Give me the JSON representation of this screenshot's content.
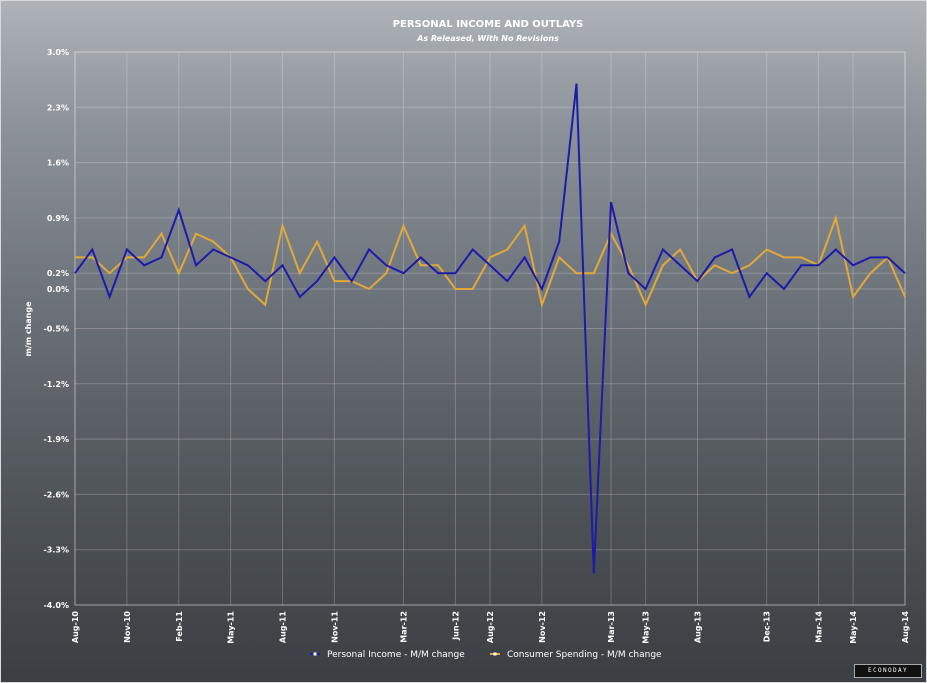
{
  "chart_data": {
    "type": "line",
    "title": "PERSONAL INCOME AND OUTLAYS",
    "subtitle": "As Released, With No Revisions",
    "ylabel": "m/m change",
    "ylim": [
      -4.0,
      3.0
    ],
    "yticks": [
      "3.0%",
      "2.3%",
      "1.6%",
      "0.9%",
      "0.2%",
      "0.0%",
      "-0.5%",
      "-1.2%",
      "-1.9%",
      "-2.6%",
      "-3.3%",
      "-4.0%"
    ],
    "ytick_values": [
      3.0,
      2.3,
      1.6,
      0.9,
      0.2,
      0.0,
      -0.5,
      -1.2,
      -1.9,
      -2.6,
      -3.3,
      -4.0
    ],
    "x": [
      "Aug-10",
      "Sep-10",
      "Oct-10",
      "Nov-10",
      "Dec-10",
      "Jan-11",
      "Feb-11",
      "Mar-11",
      "Apr-11",
      "May-11",
      "Jun-11",
      "Jul-11",
      "Aug-11",
      "Sep-11",
      "Oct-11",
      "Nov-11",
      "Dec-11",
      "Jan-12",
      "Feb-12",
      "Mar-12",
      "Apr-12",
      "May-12",
      "Jun-12",
      "Jul-12",
      "Aug-12",
      "Sep-12",
      "Oct-12",
      "Nov-12",
      "Dec-12",
      "Jan-13",
      "Feb-13",
      "Mar-13",
      "Apr-13",
      "May-13",
      "Jun-13",
      "Jul-13",
      "Aug-13",
      "Sep-13",
      "Oct-13",
      "Nov-13",
      "Dec-13",
      "Jan-14",
      "Feb-14",
      "Mar-14",
      "Apr-14",
      "May-14",
      "Jun-14",
      "Jul-14",
      "Aug-14"
    ],
    "xtick_labels": [
      "Aug-10",
      "Nov-10",
      "Feb-11",
      "May-11",
      "Aug-11",
      "Nov-11",
      "Mar-12",
      "Jun-12",
      "Aug-12",
      "Nov-12",
      "Mar-13",
      "May-13",
      "Aug-13",
      "Dec-13",
      "Mar-14",
      "May-14",
      "Aug-14"
    ],
    "xtick_index": [
      0,
      3,
      6,
      9,
      12,
      15,
      19,
      22,
      24,
      27,
      31,
      33,
      36,
      40,
      43,
      45,
      48
    ],
    "series": [
      {
        "name": "Personal Income - M/M change",
        "color": "#1c1ca8",
        "values": [
          0.2,
          0.5,
          -0.1,
          0.5,
          0.3,
          0.4,
          1.0,
          0.3,
          0.5,
          0.4,
          0.3,
          0.1,
          0.3,
          -0.1,
          0.1,
          0.4,
          0.1,
          0.5,
          0.3,
          0.2,
          0.4,
          0.2,
          0.2,
          0.5,
          0.3,
          0.1,
          0.4,
          0.0,
          0.6,
          2.6,
          -3.6,
          1.1,
          0.2,
          0.0,
          0.5,
          0.3,
          0.1,
          0.4,
          0.5,
          -0.1,
          0.2,
          0.0,
          0.3,
          0.3,
          0.5,
          0.3,
          0.4,
          0.4,
          0.2
        ]
      },
      {
        "name": "Consumer Spending - M/M change",
        "color": "#e0a93a",
        "values": [
          0.4,
          0.4,
          0.2,
          0.4,
          0.4,
          0.7,
          0.2,
          0.7,
          0.6,
          0.4,
          0.0,
          -0.2,
          0.8,
          0.2,
          0.6,
          0.1,
          0.1,
          0.0,
          0.2,
          0.8,
          0.3,
          0.3,
          0.0,
          0.0,
          0.4,
          0.5,
          0.8,
          -0.2,
          0.4,
          0.2,
          0.2,
          0.7,
          0.3,
          -0.2,
          0.3,
          0.5,
          0.1,
          0.3,
          0.2,
          0.3,
          0.5,
          0.4,
          0.4,
          0.3,
          0.9,
          -0.1,
          0.2,
          0.4,
          -0.1
        ]
      }
    ],
    "grid": true,
    "legend": "bottom-center"
  },
  "brand": "ECONODAY"
}
